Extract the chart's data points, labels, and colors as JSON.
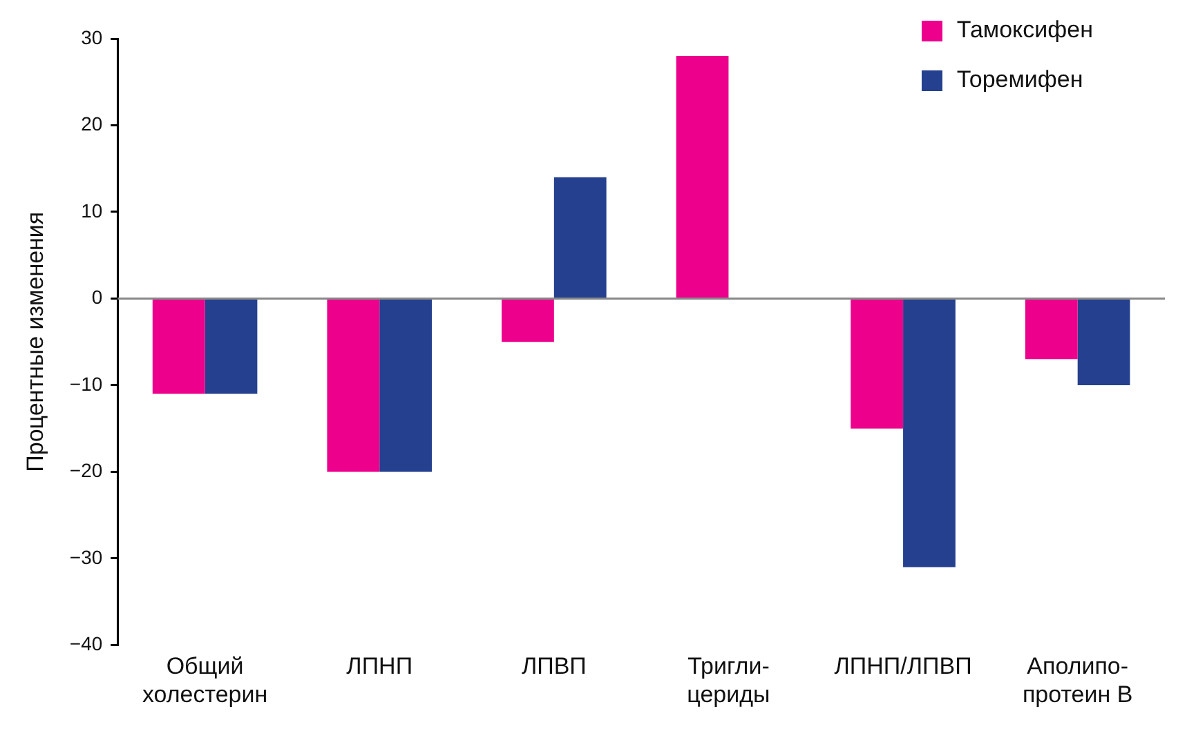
{
  "chart_data": {
    "type": "bar",
    "ylabel": "Процентные изменения",
    "categories": [
      "Общий\nхолестерин",
      "ЛПНП",
      "ЛПВП",
      "Тригли-\nцериды",
      "ЛПНП/ЛПВП",
      "Аполипо-\nпротеин В"
    ],
    "series": [
      {
        "name": "Тамоксифен",
        "color": "#ec008c",
        "values": [
          -11,
          -20,
          -5,
          28,
          -15,
          -7
        ]
      },
      {
        "name": "Торемифен",
        "color": "#24408e",
        "values": [
          -11,
          -20,
          14,
          null,
          -31,
          -10
        ]
      }
    ],
    "ylim": [
      -40,
      30
    ],
    "yticks": [
      -40,
      -30,
      -20,
      -10,
      0,
      10,
      20,
      30
    ],
    "ref_lines": [
      {
        "axis": "y",
        "value": 0,
        "color": "#888888"
      }
    ],
    "grid": false,
    "legend": "top right"
  }
}
